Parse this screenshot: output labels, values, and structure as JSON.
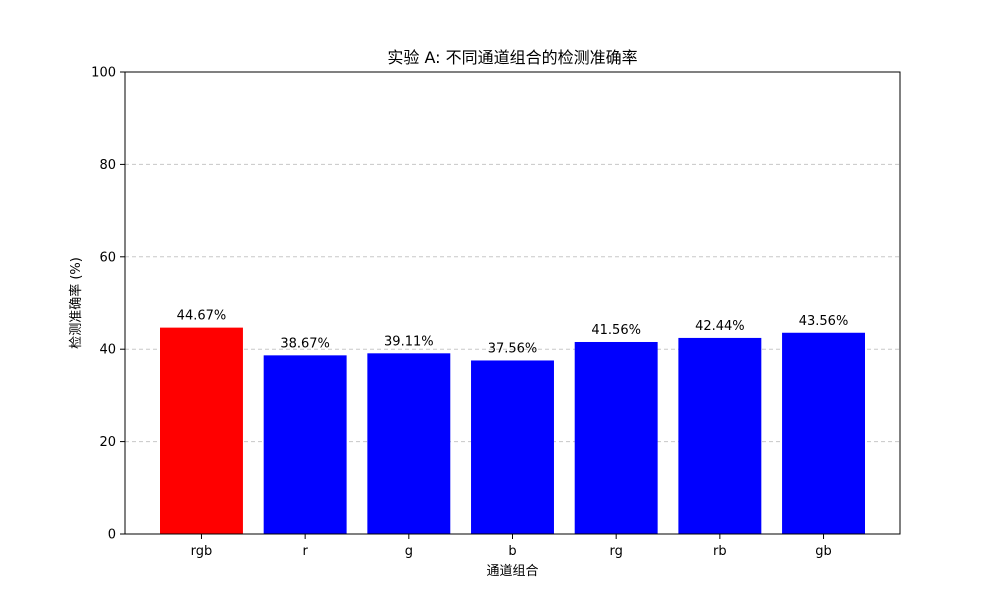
{
  "chart_data": {
    "type": "bar",
    "title": "实验 A: 不同通道组合的检测准确率",
    "xlabel": "通道组合",
    "ylabel": "检测准确率 (%)",
    "categories": [
      "rgb",
      "r",
      "g",
      "b",
      "rg",
      "rb",
      "gb"
    ],
    "values": [
      44.67,
      38.67,
      39.11,
      37.56,
      41.56,
      42.44,
      43.56
    ],
    "value_labels": [
      "44.67%",
      "38.67%",
      "39.11%",
      "37.56%",
      "41.56%",
      "42.44%",
      "43.56%"
    ],
    "colors": [
      "#ff0000",
      "#0000ff",
      "#0000ff",
      "#0000ff",
      "#0000ff",
      "#0000ff",
      "#0000ff"
    ],
    "ylim": [
      0,
      100
    ],
    "yticks": [
      0,
      20,
      40,
      60,
      80,
      100
    ],
    "ytick_labels": [
      "0",
      "20",
      "40",
      "60",
      "80",
      "100"
    ],
    "grid": "y-axis dashed",
    "legend": "none"
  }
}
